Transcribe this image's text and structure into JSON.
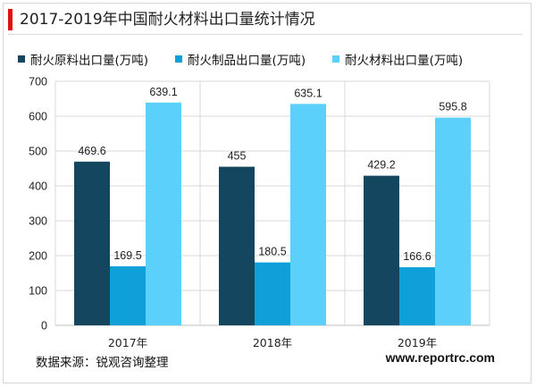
{
  "header": {
    "title": "2017-2019年中国耐火材料出口量统计情况"
  },
  "footer": {
    "source": "数据来源：锐观咨询整理",
    "website": "www.reportrc.com"
  },
  "colors": {
    "accent": "#e01010"
  },
  "chart_data": {
    "type": "bar",
    "title": "2017-2019年中国耐火材料出口量统计情况",
    "categories": [
      "2017年",
      "2018年",
      "2019年"
    ],
    "yticks": [
      "0",
      "100",
      "200",
      "300",
      "400",
      "500",
      "600",
      "700"
    ],
    "ylim": [
      0,
      700
    ],
    "grid": true,
    "legend_position": "top",
    "series": [
      {
        "name": "耐火原料出口量(万吨)",
        "color": "#14475f",
        "values": [
          469.6,
          455,
          429.2
        ],
        "labels": [
          "469.6",
          "455",
          "429.2"
        ]
      },
      {
        "name": "耐火制品出口量(万吨)",
        "color": "#0f9fd9",
        "values": [
          169.5,
          180.5,
          166.6
        ],
        "labels": [
          "169.5",
          "180.5",
          "166.6"
        ]
      },
      {
        "name": "耐火材料出口量(万吨)",
        "color": "#5ad0fa",
        "values": [
          639.1,
          635.1,
          595.8
        ],
        "labels": [
          "639.1",
          "635.1",
          "595.8"
        ]
      }
    ]
  }
}
